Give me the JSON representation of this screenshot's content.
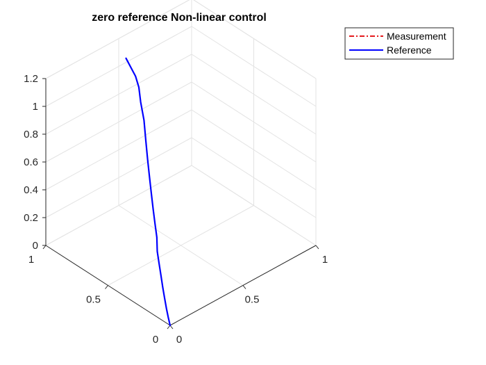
{
  "chart_data": {
    "type": "line",
    "title": "zero reference Non-linear control",
    "xlabel": "",
    "ylabel": "",
    "zlabel": "",
    "xlim": [
      0,
      1
    ],
    "ylim": [
      0,
      1
    ],
    "zlim": [
      0,
      1.2
    ],
    "xticks": [
      "0",
      "0.5",
      "1"
    ],
    "yticks": [
      "0",
      "0.5",
      "1"
    ],
    "zticks": [
      "0",
      "0.2",
      "0.4",
      "0.6",
      "0.8",
      "1",
      "1.2"
    ],
    "grid": true,
    "legend_location": "top-right",
    "series": [
      {
        "name": "Measurement",
        "color": "#e41a1c",
        "style": "dash-dot",
        "points": []
      },
      {
        "name": "Reference",
        "color": "#0000ff",
        "style": "solid",
        "points": [
          [
            0.0,
            0.0,
            0.0
          ],
          [
            0.03,
            0.05,
            0.01
          ],
          [
            0.06,
            0.1,
            0.03
          ],
          [
            0.09,
            0.15,
            0.06
          ],
          [
            0.12,
            0.2,
            0.09
          ],
          [
            0.15,
            0.25,
            0.13
          ],
          [
            0.18,
            0.3,
            0.17
          ],
          [
            0.21,
            0.35,
            0.21
          ],
          [
            0.25,
            0.4,
            0.26
          ],
          [
            0.28,
            0.45,
            0.31
          ],
          [
            0.31,
            0.5,
            0.37
          ],
          [
            0.34,
            0.55,
            0.44
          ],
          [
            0.37,
            0.6,
            0.51
          ],
          [
            0.4,
            0.65,
            0.59
          ],
          [
            0.43,
            0.7,
            0.68
          ],
          [
            0.46,
            0.75,
            0.78
          ],
          [
            0.48,
            0.8,
            0.87
          ],
          [
            0.51,
            0.85,
            0.93
          ],
          [
            0.53,
            0.9,
            0.97
          ],
          [
            0.54,
            0.95,
            1.0
          ],
          [
            0.55,
            1.0,
            1.03
          ]
        ]
      }
    ]
  }
}
